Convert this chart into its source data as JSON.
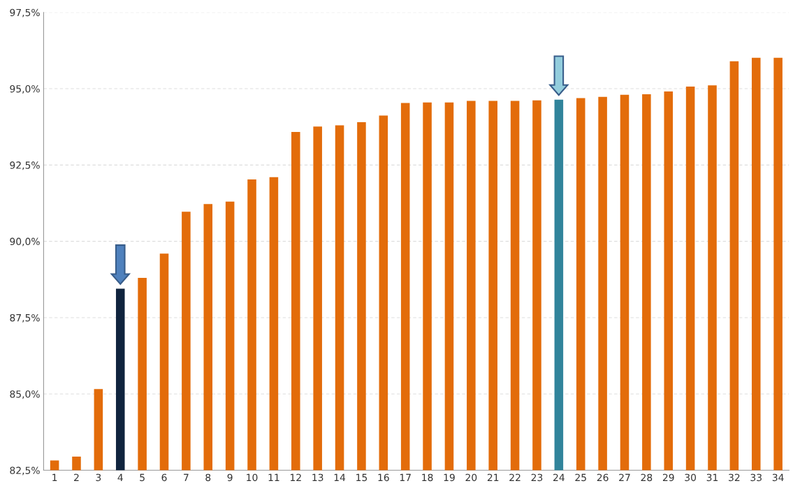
{
  "chart_data": {
    "type": "bar",
    "categories": [
      "1",
      "2",
      "3",
      "4",
      "5",
      "6",
      "7",
      "8",
      "9",
      "10",
      "11",
      "12",
      "13",
      "14",
      "15",
      "16",
      "17",
      "18",
      "19",
      "20",
      "21",
      "22",
      "23",
      "24",
      "25",
      "26",
      "27",
      "28",
      "29",
      "30",
      "31",
      "32",
      "33",
      "34"
    ],
    "values": [
      82.82,
      82.95,
      85.16,
      88.45,
      88.8,
      89.6,
      90.97,
      91.22,
      91.3,
      92.03,
      92.1,
      93.58,
      93.76,
      93.8,
      93.9,
      94.12,
      94.53,
      94.55,
      94.55,
      94.6,
      94.6,
      94.6,
      94.62,
      94.64,
      94.69,
      94.73,
      94.8,
      94.82,
      94.91,
      95.07,
      95.11,
      95.9,
      96.01,
      96.01
    ],
    "colors": [
      "#e36c0a",
      "#e36c0a",
      "#e36c0a",
      "#10243e",
      "#e36c0a",
      "#e36c0a",
      "#e36c0a",
      "#e36c0a",
      "#e36c0a",
      "#e36c0a",
      "#e36c0a",
      "#e36c0a",
      "#e36c0a",
      "#e36c0a",
      "#e36c0a",
      "#e36c0a",
      "#e36c0a",
      "#e36c0a",
      "#e36c0a",
      "#e36c0a",
      "#e36c0a",
      "#e36c0a",
      "#e36c0a",
      "#31849b",
      "#e36c0a",
      "#e36c0a",
      "#e36c0a",
      "#e36c0a",
      "#e36c0a",
      "#e36c0a",
      "#e36c0a",
      "#e36c0a",
      "#e36c0a",
      "#e36c0a"
    ],
    "ylim": [
      82.5,
      97.5
    ],
    "yticks": [
      {
        "value": 82.5,
        "label": "82,5%"
      },
      {
        "value": 85,
        "label": "85,0%"
      },
      {
        "value": 87.5,
        "label": "87,5%"
      },
      {
        "value": 90,
        "label": "90,0%"
      },
      {
        "value": 92.5,
        "label": "92,5%"
      },
      {
        "value": 95,
        "label": "95,0%"
      },
      {
        "value": 97.5,
        "label": "97,5%"
      }
    ],
    "grid": "y"
  }
}
